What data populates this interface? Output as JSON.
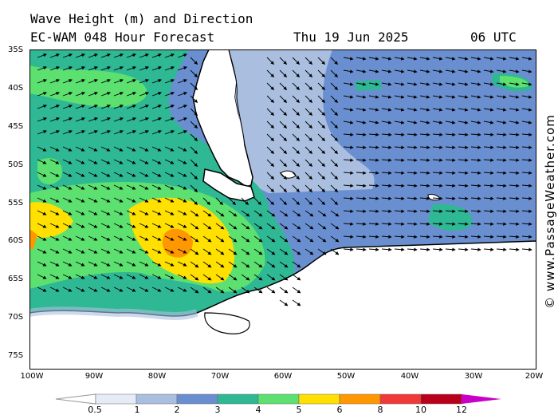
{
  "header": {
    "title_line1": "Wave Height (m) and Direction",
    "title_line2": "EC-WAM 048 Hour Forecast",
    "date": "Thu 19 Jun 2025",
    "time": "06 UTC"
  },
  "watermark": "© www.PassageWeather.com",
  "latitude_labels": [
    "35S",
    "40S",
    "45S",
    "50S",
    "55S",
    "60S",
    "65S",
    "70S",
    "75S"
  ],
  "longitude_labels": [
    "100W",
    "90W",
    "80W",
    "70W",
    "60W",
    "50W",
    "40W",
    "30W",
    "20W"
  ],
  "legend": {
    "labels": [
      "0.5",
      "1",
      "2",
      "3",
      "4",
      "5",
      "6",
      "8",
      "10",
      "12"
    ],
    "colors": [
      "#e6ecf7",
      "#aabfe0",
      "#6a8fd0",
      "#2fb894",
      "#5ce070",
      "#ffe000",
      "#ff9800",
      "#f03a3a",
      "#b8001a",
      "#c800c8"
    ]
  },
  "map_colors": {
    "land": "#ffffff",
    "ice": "#ffffff",
    "coast": "#000000",
    "arrow": "#000000"
  }
}
